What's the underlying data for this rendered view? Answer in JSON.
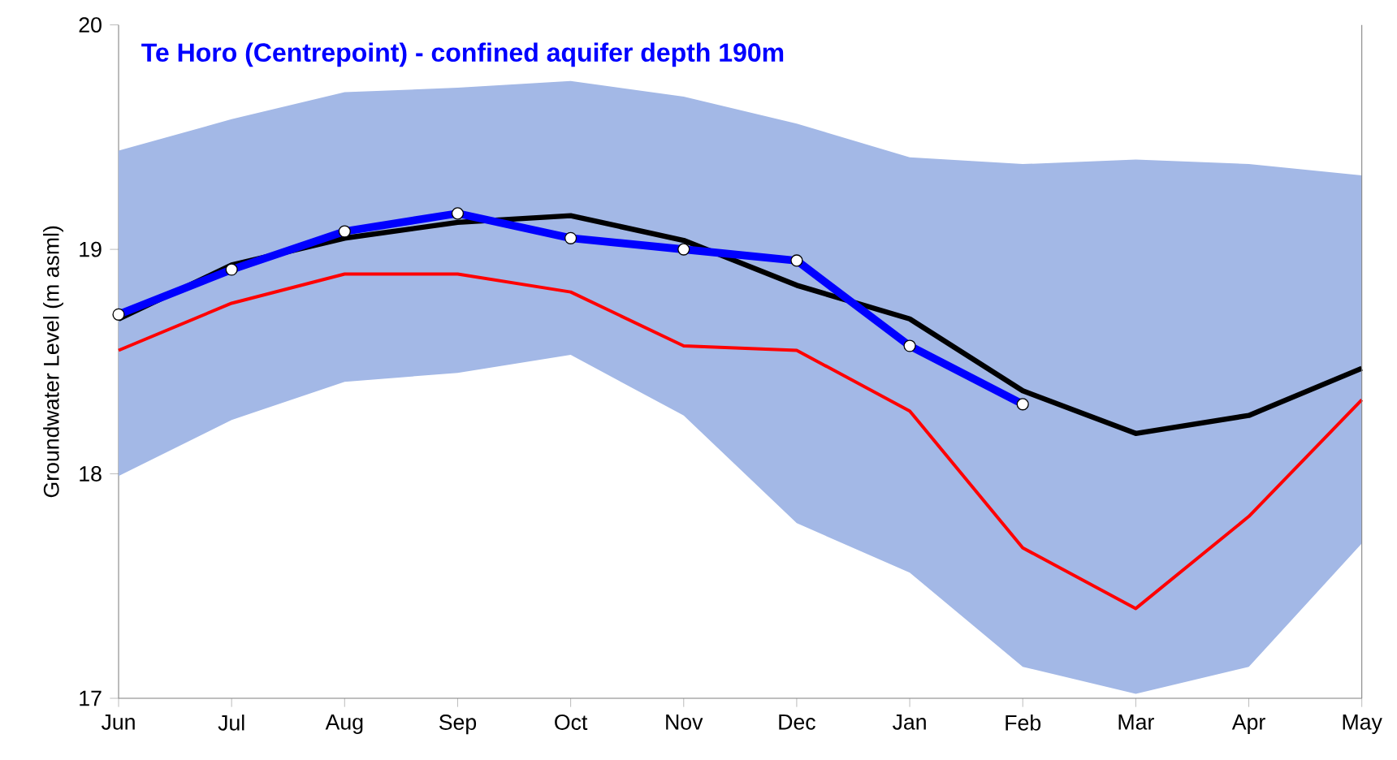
{
  "chart_data": {
    "type": "line",
    "title": "Te Horo (Centrepoint) - confined aquifer depth 190m",
    "ylabel": "Groundwater Level (m asml)",
    "categories": [
      "Jun",
      "Jul",
      "Aug",
      "Sep",
      "Oct",
      "Nov",
      "Dec",
      "Jan",
      "Feb",
      "Mar",
      "Apr",
      "May"
    ],
    "series": [
      {
        "color": "#000000",
        "values": [
          18.69,
          18.93,
          19.05,
          19.12,
          19.15,
          19.04,
          18.84,
          18.69,
          18.37,
          18.18,
          18.26,
          18.47
        ],
        "lower": [
          17.99,
          18.24,
          18.41,
          18.45,
          18.53,
          18.26,
          17.78,
          17.56,
          17.14,
          17.02,
          17.14,
          17.69
        ],
        "upper": [
          19.44,
          19.58,
          19.7,
          19.72,
          19.75,
          19.68,
          19.56,
          19.41,
          19.38,
          19.4,
          19.38,
          19.33
        ]
      },
      {
        "color": "#ff0000",
        "values": [
          18.55,
          18.76,
          18.89,
          18.89,
          18.81,
          18.57,
          18.55,
          18.28,
          17.67,
          17.4,
          17.81,
          18.33
        ]
      },
      {
        "color": "#0000ff",
        "marker": "circle",
        "values": [
          18.71,
          18.91,
          19.08,
          19.16,
          19.05,
          19.0,
          18.95,
          18.57,
          18.31,
          null,
          null,
          null
        ]
      }
    ],
    "ylim": [
      17,
      20
    ],
    "yticks": [
      17,
      18,
      19,
      20
    ],
    "grid": false,
    "line_style": "solid"
  }
}
